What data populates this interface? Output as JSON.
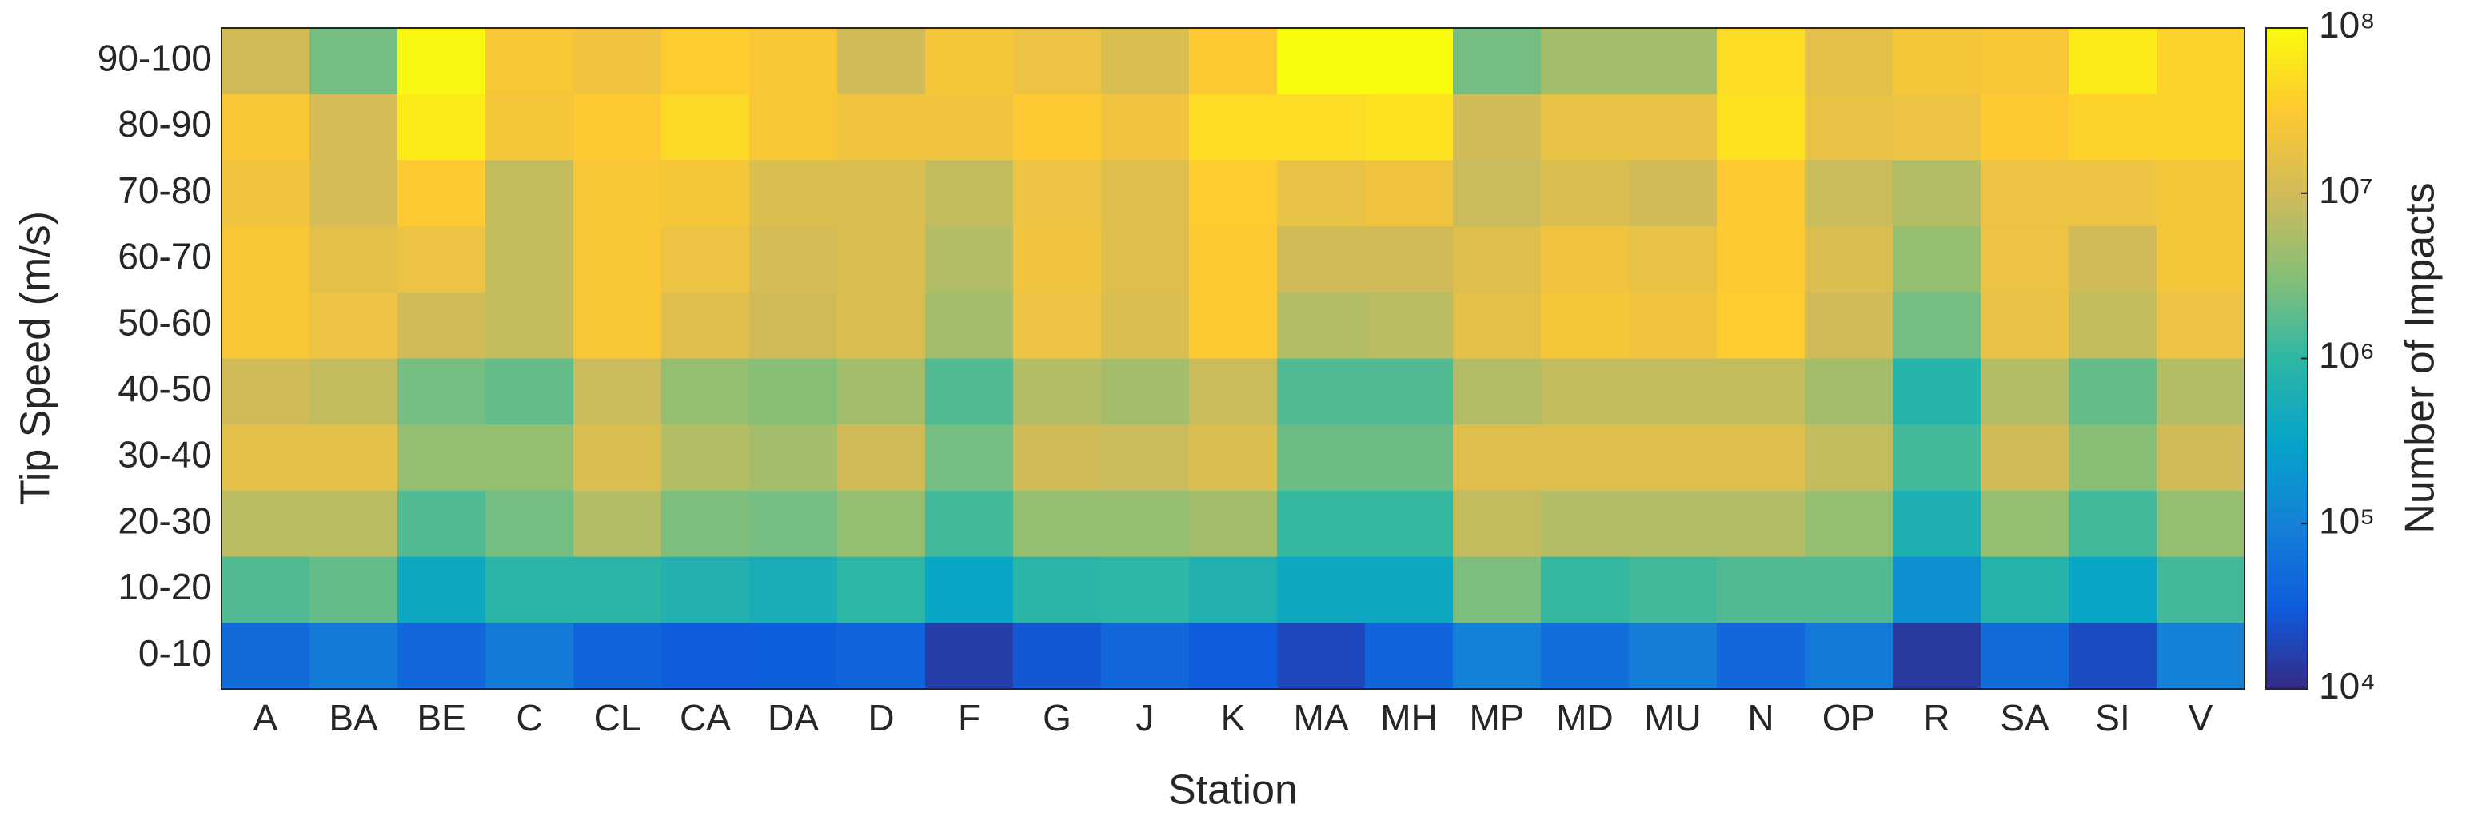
{
  "chart_data": {
    "type": "heatmap",
    "xlabel": "Station",
    "ylabel": "Tip Speed (m/s)",
    "colorbar_label": "Number of Impacts",
    "x_categories": [
      "A",
      "BA",
      "BE",
      "C",
      "CL",
      "CA",
      "DA",
      "D",
      "F",
      "G",
      "J",
      "K",
      "MA",
      "MH",
      "MP",
      "MD",
      "MU",
      "N",
      "OP",
      "R",
      "SA",
      "SI",
      "V"
    ],
    "y_categories": [
      "90-100",
      "80-90",
      "70-80",
      "60-70",
      "50-60",
      "40-50",
      "30-40",
      "20-30",
      "10-20",
      "0-10"
    ],
    "values": [
      [
        10000000.0,
        2500000.0,
        90000000.0,
        28000000.0,
        22000000.0,
        35000000.0,
        28000000.0,
        10000000.0,
        25000000.0,
        20000000.0,
        13000000.0,
        32000000.0,
        100000000.0,
        100000000.0,
        2500000.0,
        5000000.0,
        5000000.0,
        50000000.0,
        16000000.0,
        25000000.0,
        28000000.0,
        70000000.0,
        40000000.0
      ],
      [
        28000000.0,
        11000000.0,
        70000000.0,
        25000000.0,
        32000000.0,
        45000000.0,
        28000000.0,
        22000000.0,
        22000000.0,
        32000000.0,
        22000000.0,
        50000000.0,
        50000000.0,
        56000000.0,
        10000000.0,
        18000000.0,
        18000000.0,
        56000000.0,
        18000000.0,
        20000000.0,
        32000000.0,
        40000000.0,
        40000000.0
      ],
      [
        22000000.0,
        11000000.0,
        32000000.0,
        8000000.0,
        28000000.0,
        25000000.0,
        13000000.0,
        13000000.0,
        8000000.0,
        20000000.0,
        14000000.0,
        35000000.0,
        18000000.0,
        22000000.0,
        9000000.0,
        13000000.0,
        10000000.0,
        32000000.0,
        9000000.0,
        6300000.0,
        20000000.0,
        20000000.0,
        25000000.0
      ],
      [
        28000000.0,
        16000000.0,
        20000000.0,
        8000000.0,
        28000000.0,
        20000000.0,
        11000000.0,
        13000000.0,
        6300000.0,
        22000000.0,
        14000000.0,
        32000000.0,
        10000000.0,
        10000000.0,
        14000000.0,
        22000000.0,
        18000000.0,
        32000000.0,
        13000000.0,
        4000000.0,
        20000000.0,
        10000000.0,
        25000000.0
      ],
      [
        28000000.0,
        20000000.0,
        10000000.0,
        8000000.0,
        28000000.0,
        14000000.0,
        10000000.0,
        13000000.0,
        5000000.0,
        20000000.0,
        13000000.0,
        32000000.0,
        6300000.0,
        7000000.0,
        16000000.0,
        25000000.0,
        22000000.0,
        35000000.0,
        10000000.0,
        2500000.0,
        18000000.0,
        8000000.0,
        20000000.0
      ],
      [
        10000000.0,
        8000000.0,
        2500000.0,
        2000000.0,
        9000000.0,
        4000000.0,
        3200000.0,
        5000000.0,
        1600000.0,
        6300000.0,
        5000000.0,
        9000000.0,
        1600000.0,
        1600000.0,
        6300000.0,
        8000000.0,
        8000000.0,
        8000000.0,
        5000000.0,
        800000.0,
        6300000.0,
        2000000.0,
        6300000.0
      ],
      [
        16000000.0,
        16000000.0,
        4000000.0,
        4000000.0,
        13000000.0,
        6300000.0,
        5000000.0,
        10000000.0,
        2500000.0,
        10000000.0,
        9000000.0,
        13000000.0,
        2200000.0,
        2200000.0,
        14000000.0,
        14000000.0,
        14000000.0,
        14000000.0,
        8000000.0,
        1300000.0,
        10000000.0,
        3200000.0,
        10000000.0
      ],
      [
        7000000.0,
        7000000.0,
        1600000.0,
        2500000.0,
        6300000.0,
        2800000.0,
        2500000.0,
        4000000.0,
        1300000.0,
        4000000.0,
        4000000.0,
        5000000.0,
        1100000.0,
        1100000.0,
        8000000.0,
        6300000.0,
        6300000.0,
        6300000.0,
        4000000.0,
        630000.0,
        4000000.0,
        1300000.0,
        4000000.0
      ],
      [
        1600000.0,
        2000000.0,
        400000.0,
        900000.0,
        900000.0,
        700000.0,
        560000.0,
        1000000.0,
        350000.0,
        900000.0,
        1000000.0,
        700000.0,
        400000.0,
        400000.0,
        2800000.0,
        1100000.0,
        1300000.0,
        1600000.0,
        1600000.0,
        160000.0,
        800000.0,
        350000.0,
        1300000.0
      ],
      [
        50000.0,
        80000.0,
        45000.0,
        80000.0,
        40000.0,
        32000.0,
        35000.0,
        40000.0,
        16000.0,
        28000.0,
        45000.0,
        32000.0,
        20000.0,
        40000.0,
        100000.0,
        56000.0,
        90000.0,
        45000.0,
        80000.0,
        14000.0,
        50000.0,
        22000.0,
        100000.0
      ]
    ],
    "clim": [
      10000,
      100000000
    ],
    "color_scale": "log",
    "colormap": [
      "#352a87",
      "#0f5cdd",
      "#1481d6",
      "#06a4ca",
      "#2eb7a4",
      "#87bf77",
      "#d1bb59",
      "#fec832",
      "#f9fb0e"
    ],
    "cticks": [
      {
        "value": 10000,
        "label": "10⁴"
      },
      {
        "value": 100000,
        "label": "10⁵"
      },
      {
        "value": 1000000,
        "label": "10⁶"
      },
      {
        "value": 10000000,
        "label": "10⁷"
      },
      {
        "value": 100000000,
        "label": "10⁸"
      }
    ]
  }
}
